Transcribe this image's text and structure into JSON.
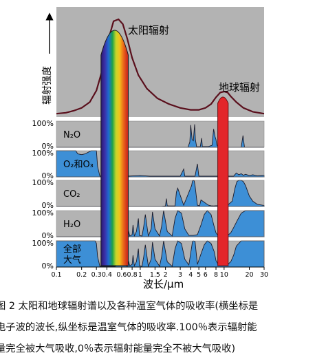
{
  "figure": {
    "ylabel": "辐射强度",
    "xlabel": "波长/μm",
    "sun_label": "太阳辐射",
    "earth_label": "地球辐射",
    "tick_labels": [
      "0.1",
      "0.2",
      "0.3",
      "0.4",
      "0.6",
      "0.8",
      "1",
      "1.5",
      "2",
      "3",
      "4",
      "5",
      "6",
      "8",
      "10",
      "20",
      "30"
    ],
    "percent_top": "100%",
    "percent_bottom": "0%"
  },
  "panels": [
    {
      "label": "N₂O"
    },
    {
      "label": "O₂和O₃"
    },
    {
      "label": "CO₂"
    },
    {
      "label": "H₂O"
    },
    {
      "label": "全部\n大气"
    }
  ],
  "caption": {
    "line1": "图 2   太阳和地球辐射谱以及各种温室气体的吸收率(横坐标是",
    "line2": "电子波的波长,纵坐标是温室气体的吸收率.100％表示辐射能",
    "line3": "量完全被大气吸收,0％表示辐射能量完全不被大气吸收)"
  },
  "colors": {
    "panel_bg": "#b3b3b3",
    "absorption_fill": "#3d8fd6",
    "spectrum_curve": "#5a0f1c",
    "earth_band": "#e3262a"
  },
  "chart_data": {
    "type": "area",
    "x_scale": "log",
    "xlim": [
      0.1,
      30
    ],
    "x_ticks": [
      0.1,
      0.2,
      0.3,
      0.4,
      0.6,
      0.8,
      1,
      1.5,
      2,
      3,
      4,
      5,
      6,
      8,
      10,
      20,
      30
    ],
    "ylabel": "辐射强度",
    "xlabel": "波长/μm",
    "spectrum": {
      "x": [
        0.1,
        0.13,
        0.16,
        0.2,
        0.25,
        0.3,
        0.36,
        0.42,
        0.48,
        0.55,
        0.62,
        0.7,
        0.8,
        0.95,
        1.2,
        1.6,
        2.2,
        3,
        4,
        5,
        6,
        7,
        8,
        9,
        10,
        11,
        12,
        14,
        17,
        22,
        30
      ],
      "y": [
        0.02,
        0.03,
        0.05,
        0.08,
        0.14,
        0.26,
        0.5,
        0.8,
        0.98,
        1.0,
        0.95,
        0.8,
        0.6,
        0.42,
        0.28,
        0.18,
        0.12,
        0.08,
        0.06,
        0.06,
        0.08,
        0.12,
        0.19,
        0.24,
        0.25,
        0.24,
        0.2,
        0.14,
        0.08,
        0.04,
        0.02
      ]
    },
    "absorption_ylim": [
      0,
      100
    ],
    "series": [
      {
        "name": "N₂O",
        "x": [
          0.1,
          3.7,
          3.9,
          4.0,
          4.15,
          4.3,
          4.45,
          4.55,
          4.7,
          5.2,
          5.4,
          5.5,
          6.5,
          7.2,
          7.5,
          7.8,
          8.0,
          8.2,
          8.6,
          9.0,
          16,
          16.8,
          17.5,
          30
        ],
        "y": [
          0,
          0,
          20,
          85,
          30,
          25,
          88,
          30,
          2,
          2,
          35,
          3,
          3,
          8,
          70,
          40,
          30,
          8,
          4,
          0,
          0,
          45,
          0,
          0
        ]
      },
      {
        "name": "O₂和O₃",
        "x": [
          0.1,
          0.17,
          0.18,
          0.2,
          0.22,
          0.26,
          0.29,
          0.3,
          0.31,
          0.33,
          0.5,
          0.6,
          0.7,
          1.0,
          1.3,
          3.0,
          3.3,
          3.4,
          4.5,
          4.8,
          5.0,
          9.3,
          9.5,
          9.7,
          9.8,
          10.0,
          10.3,
          13,
          14,
          15,
          16,
          17,
          18,
          20,
          22,
          25,
          30
        ],
        "y": [
          100,
          100,
          88,
          85,
          88,
          100,
          100,
          100,
          40,
          3,
          3,
          12,
          3,
          5,
          3,
          3,
          30,
          3,
          3,
          50,
          3,
          3,
          85,
          55,
          90,
          30,
          3,
          3,
          15,
          8,
          12,
          6,
          10,
          5,
          8,
          4,
          6
        ]
      },
      {
        "name": "CO₂",
        "x": [
          0.1,
          1.8,
          2.0,
          2.05,
          2.1,
          2.2,
          2.6,
          2.7,
          2.8,
          3.3,
          4.1,
          4.2,
          4.3,
          4.4,
          4.5,
          4.8,
          5.1,
          5.3,
          6.5,
          7.0,
          7.5,
          8.0,
          9.0,
          9.4,
          9.6,
          10.2,
          10.4,
          11,
          12.5,
          13.5,
          14.2,
          15,
          16,
          17,
          18,
          20,
          22,
          25,
          30
        ],
        "y": [
          0,
          0,
          2,
          30,
          3,
          2,
          2,
          55,
          70,
          5,
          80,
          98,
          100,
          98,
          80,
          5,
          3,
          25,
          5,
          3,
          2,
          3,
          3,
          20,
          3,
          20,
          3,
          5,
          20,
          70,
          95,
          100,
          100,
          95,
          80,
          40,
          20,
          8,
          4
        ]
      },
      {
        "name": "H₂O",
        "x": [
          0.1,
          0.6,
          0.7,
          0.72,
          0.75,
          0.8,
          0.82,
          0.85,
          0.9,
          0.95,
          0.98,
          1.05,
          1.1,
          1.15,
          1.25,
          1.35,
          1.4,
          1.5,
          1.7,
          1.8,
          1.9,
          2.1,
          2.4,
          2.6,
          2.8,
          3.1,
          3.4,
          3.8,
          4.3,
          4.8,
          5.3,
          5.8,
          6.3,
          7.0,
          7.6,
          8.0,
          8.3,
          9.0,
          10.0,
          11.0,
          12.0,
          13.0,
          14.5,
          16,
          18,
          20,
          25,
          30
        ],
        "y": [
          0,
          0,
          2,
          25,
          3,
          8,
          45,
          3,
          20,
          70,
          5,
          3,
          40,
          85,
          3,
          30,
          95,
          30,
          3,
          40,
          100,
          20,
          3,
          70,
          100,
          90,
          30,
          5,
          5,
          8,
          45,
          85,
          100,
          85,
          40,
          15,
          8,
          5,
          3,
          5,
          15,
          35,
          65,
          90,
          100,
          100,
          100,
          100
        ]
      },
      {
        "name": "全部\n大气",
        "x": [
          0.1,
          0.28,
          0.29,
          0.3,
          0.31,
          0.33,
          0.5,
          0.6,
          0.7,
          0.72,
          0.75,
          0.8,
          0.82,
          0.85,
          0.9,
          0.95,
          0.98,
          1.05,
          1.1,
          1.15,
          1.25,
          1.35,
          1.4,
          1.5,
          1.7,
          1.8,
          1.9,
          2.1,
          2.4,
          2.6,
          2.8,
          3.1,
          3.4,
          3.8,
          4.2,
          4.3,
          4.5,
          4.8,
          5.3,
          5.8,
          6.3,
          7.0,
          7.6,
          8.0,
          8.3,
          9.0,
          9.5,
          9.8,
          10.3,
          11,
          12,
          13,
          14,
          16,
          18,
          20,
          25,
          30
        ],
        "y": [
          100,
          100,
          100,
          90,
          40,
          3,
          3,
          12,
          3,
          25,
          5,
          10,
          45,
          5,
          20,
          70,
          5,
          3,
          40,
          85,
          3,
          30,
          95,
          30,
          3,
          40,
          100,
          20,
          3,
          70,
          100,
          90,
          30,
          8,
          98,
          100,
          98,
          10,
          50,
          85,
          100,
          90,
          60,
          25,
          15,
          10,
          85,
          90,
          15,
          10,
          20,
          45,
          80,
          100,
          100,
          100,
          100,
          100
        ]
      }
    ]
  }
}
